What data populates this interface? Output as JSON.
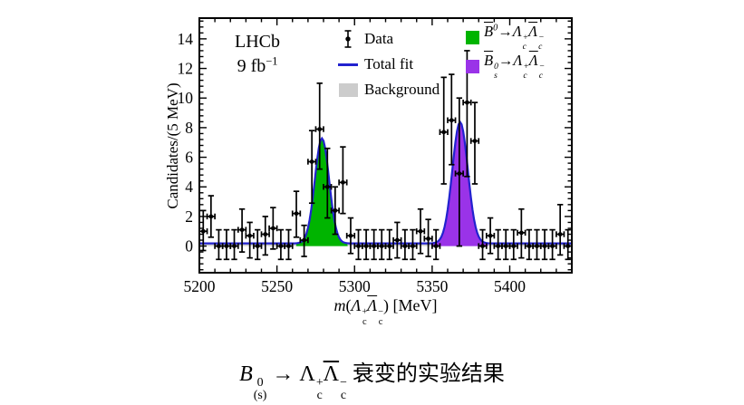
{
  "figure": {
    "experiment": "LHCb",
    "luminosity_plain": "9 fb−1",
    "luminosity_segments": [
      {
        "t": "9 fb",
        "sup": "−1"
      }
    ],
    "legend_fit": {
      "data_label": "Data",
      "total_fit_label": "Total fit",
      "background_label": "Background"
    },
    "legend_components": [
      {
        "label_plain": "B̄0 → Λc+ Λ̄c−",
        "segments": [
          {
            "t": "B",
            "i": true,
            "bar": true,
            "sup": "0"
          },
          {
            "t": "→"
          },
          {
            "t": "Λ",
            "i": true,
            "sub": "c",
            "sup": "+"
          },
          {
            "t": "Λ",
            "i": true,
            "bar": true,
            "sub": "c",
            "sup": "−"
          }
        ]
      },
      {
        "label_plain": "B̄s0 → Λc+ Λ̄c−",
        "segments": [
          {
            "t": "B",
            "i": true,
            "bar": true,
            "sup": "0",
            "sub": "s"
          },
          {
            "t": "→"
          },
          {
            "t": "Λ",
            "i": true,
            "sub": "c",
            "sup": "+"
          },
          {
            "t": "Λ",
            "i": true,
            "bar": true,
            "sub": "c",
            "sup": "−"
          }
        ]
      }
    ],
    "xlabel_segments": [
      {
        "t": "m",
        "i": true
      },
      {
        "t": "("
      },
      {
        "t": "Λ",
        "i": true,
        "sub": "c",
        "sup": "+"
      },
      {
        "t": "Λ",
        "i": true,
        "bar": true,
        "sub": "c",
        "sup": "−"
      },
      {
        "t": ") [MeV]"
      }
    ]
  },
  "caption": {
    "plain": "B0(s) → Λc+ Λ̄c− 衰变的实验结果",
    "segments": [
      {
        "t": "B",
        "i": true,
        "sup": "0",
        "sub": "(s)"
      },
      {
        "t": " → "
      },
      {
        "t": "Λ",
        "sub": "c",
        "sup": "+"
      },
      {
        "t": "Λ",
        "bar": true,
        "sub": "c",
        "sup": "−"
      },
      {
        "t": " 衰变的实验结果"
      }
    ]
  },
  "chart_data": {
    "type": "histogram_with_fit",
    "title": "",
    "xlabel_plain": "m(Λc+ Λ̄c−) [MeV]",
    "ylabel": "Candidates/(5 MeV)",
    "xlim": [
      5200,
      5440
    ],
    "ylim": [
      -1.8,
      15.4
    ],
    "xticks": [
      5200,
      5250,
      5300,
      5350,
      5400
    ],
    "xminor_step": 10,
    "yticks": [
      0,
      2,
      4,
      6,
      8,
      10,
      12,
      14
    ],
    "yminor_step": 0.4,
    "bin_width_mev": 5,
    "background_level": 0.18,
    "background_color": "#cccccc",
    "fit_color": "#2222cf",
    "axis_color": "#000000",
    "marker_color": "#000000",
    "peaks": [
      {
        "name": "B0bar to Lc+ Lcbar-",
        "center": 5279,
        "sigma": 4.6,
        "height": 7.1,
        "color": "#00b400"
      },
      {
        "name": "Bs0bar to Lc+ Lcbar-",
        "center": 5368,
        "sigma": 5.0,
        "height": 8.2,
        "color": "#9a33e8"
      }
    ],
    "data_points": [
      [
        5202.5,
        1.0,
        -0.3,
        2.4
      ],
      [
        5207.5,
        2.0,
        0.6,
        3.4
      ],
      [
        5212.5,
        0.0,
        -0.9,
        1.1
      ],
      [
        5217.5,
        0.0,
        -0.9,
        1.1
      ],
      [
        5222.5,
        0.0,
        -0.9,
        1.1
      ],
      [
        5227.5,
        1.1,
        -0.4,
        2.5
      ],
      [
        5232.5,
        0.7,
        -0.8,
        1.6
      ],
      [
        5237.5,
        0.0,
        -0.9,
        1.1
      ],
      [
        5242.5,
        0.8,
        -0.6,
        2.0
      ],
      [
        5247.5,
        1.2,
        -0.2,
        2.6
      ],
      [
        5252.5,
        0.0,
        -0.9,
        1.1
      ],
      [
        5257.5,
        0.0,
        -0.9,
        1.1
      ],
      [
        5262.5,
        2.2,
        0.6,
        3.7
      ],
      [
        5267.5,
        0.4,
        -0.7,
        1.4
      ],
      [
        5272.5,
        5.7,
        2.9,
        7.8
      ],
      [
        5277.5,
        7.9,
        5.2,
        11.0
      ],
      [
        5282.5,
        4.0,
        1.9,
        6.6
      ],
      [
        5287.5,
        2.4,
        0.8,
        4.0
      ],
      [
        5292.5,
        4.3,
        2.2,
        6.7
      ],
      [
        5297.5,
        0.7,
        -0.5,
        1.9
      ],
      [
        5302.5,
        0.0,
        -0.9,
        1.1
      ],
      [
        5307.5,
        0.0,
        -0.9,
        1.1
      ],
      [
        5312.5,
        0.0,
        -0.9,
        1.1
      ],
      [
        5317.5,
        0.0,
        -0.9,
        1.1
      ],
      [
        5322.5,
        0.0,
        -0.9,
        1.1
      ],
      [
        5327.5,
        0.4,
        -0.8,
        1.6
      ],
      [
        5332.5,
        0.0,
        -0.9,
        1.1
      ],
      [
        5337.5,
        0.0,
        -0.9,
        1.1
      ],
      [
        5342.5,
        1.0,
        -0.5,
        2.5
      ],
      [
        5347.5,
        0.5,
        -0.7,
        1.8
      ],
      [
        5352.5,
        0.0,
        -0.9,
        1.1
      ],
      [
        5357.5,
        7.7,
        4.2,
        11.4
      ],
      [
        5362.5,
        8.5,
        5.5,
        11.6
      ],
      [
        5367.5,
        4.9,
        0.0,
        10.0
      ],
      [
        5372.5,
        9.7,
        4.7,
        13.2
      ],
      [
        5377.5,
        7.1,
        4.2,
        9.7
      ],
      [
        5382.5,
        0.0,
        -0.9,
        1.1
      ],
      [
        5387.5,
        0.7,
        -0.5,
        1.9
      ],
      [
        5392.5,
        0.0,
        -0.9,
        1.1
      ],
      [
        5397.5,
        0.0,
        -0.9,
        1.1
      ],
      [
        5402.5,
        0.0,
        -0.9,
        1.1
      ],
      [
        5407.5,
        0.9,
        -0.8,
        2.5
      ],
      [
        5412.5,
        0.0,
        -0.9,
        1.1
      ],
      [
        5417.5,
        0.0,
        -0.9,
        1.1
      ],
      [
        5422.5,
        0.0,
        -0.9,
        1.1
      ],
      [
        5427.5,
        0.0,
        -0.9,
        1.1
      ],
      [
        5432.5,
        0.8,
        -0.6,
        2.8
      ],
      [
        5437.5,
        0.0,
        -0.9,
        1.1
      ]
    ],
    "legend_position": "top",
    "grid": false
  }
}
